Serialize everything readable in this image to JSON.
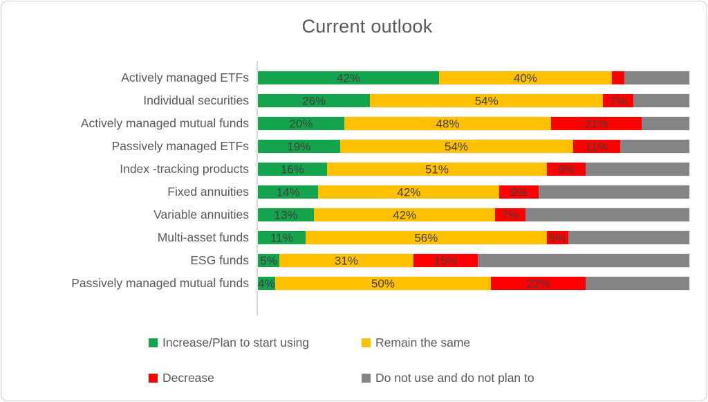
{
  "chart_data": {
    "type": "bar",
    "orientation": "horizontal",
    "stacked": true,
    "title": "Current outlook",
    "xlabel": "",
    "ylabel": "",
    "xlim": [
      0,
      100
    ],
    "value_suffix": "%",
    "grid": false,
    "legend_position": "bottom",
    "categories": [
      "Actively managed ETFs",
      "Individual securities",
      "Actively managed mutual funds",
      "Passively managed ETFs",
      "Index -tracking products",
      "Fixed annuities",
      "Variable annuities",
      "Multi-asset funds",
      "ESG funds",
      "Passively managed mutual funds"
    ],
    "series": [
      {
        "name": "Increase/Plan to start using",
        "color": "#14A44D",
        "values": [
          42,
          26,
          20,
          19,
          16,
          14,
          13,
          11,
          5,
          4
        ],
        "labels": [
          "42%",
          "26%",
          "20%",
          "19%",
          "16%",
          "14%",
          "13%",
          "11%",
          "5%",
          "4%"
        ]
      },
      {
        "name": "Remain the same",
        "color": "#FFC000",
        "values": [
          40,
          54,
          48,
          54,
          51,
          42,
          42,
          56,
          31,
          50
        ],
        "labels": [
          "40%",
          "54%",
          "48%",
          "54%",
          "51%",
          "42%",
          "42%",
          "56%",
          "31%",
          "50%"
        ]
      },
      {
        "name": "Decrease",
        "color": "#FF0000",
        "values": [
          3,
          7,
          21,
          11,
          9,
          9,
          7,
          5,
          15,
          22
        ],
        "labels": [
          "",
          "7%",
          "21%",
          "11%",
          "9%",
          "9%",
          "7%",
          "5%",
          "15%",
          "22%"
        ]
      },
      {
        "name": "Do not use and do not plan to",
        "color": "#848484",
        "values": [
          15,
          13,
          11,
          16,
          24,
          35,
          38,
          28,
          49,
          24
        ],
        "labels": [
          "",
          "",
          "",
          "",
          "",
          "",
          "",
          "",
          "",
          ""
        ]
      }
    ]
  }
}
